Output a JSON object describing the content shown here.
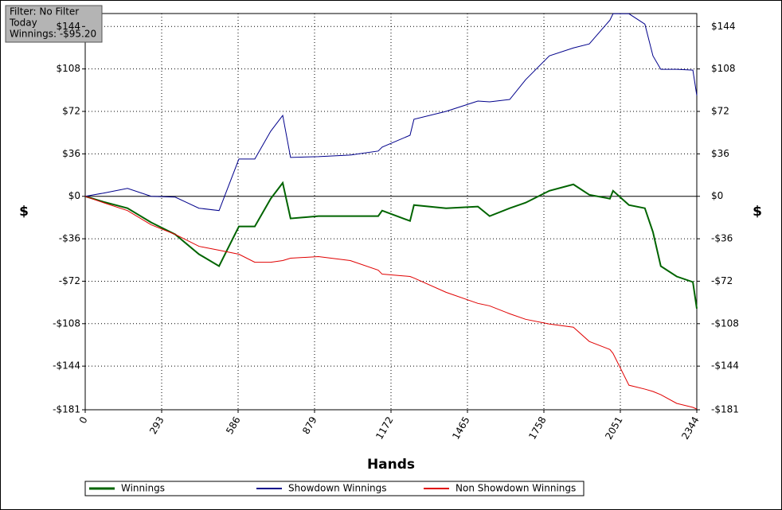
{
  "chart_data": {
    "type": "line",
    "annotations": [
      "Filter: No Filter",
      "Today",
      "Winnings: -$95.20"
    ],
    "x_label": "Hands",
    "y_label": "$",
    "y2_label": "$",
    "x": [
      0,
      70,
      162,
      253,
      345,
      436,
      513,
      589,
      650,
      711,
      757,
      787,
      894,
      1016,
      1123,
      1138,
      1245,
      1260,
      1383,
      1505,
      1550,
      1627,
      1688,
      1779,
      1871,
      1932,
      2011,
      2023,
      2084,
      2145,
      2176,
      2206,
      2267,
      2329,
      2344
    ],
    "series": [
      {
        "name": "Winnings",
        "color": "#006400",
        "width": 2,
        "values": [
          0,
          -4.7,
          -10.1,
          -22.2,
          -32.3,
          -49.1,
          -59.2,
          -25.6,
          -25.6,
          -2.0,
          11.4,
          -18.8,
          -16.8,
          -16.8,
          -16.8,
          -12.1,
          -20.9,
          -7.4,
          -10.1,
          -8.7,
          -16.8,
          -10.1,
          -5.4,
          4.7,
          10.1,
          1.3,
          -2.0,
          4.7,
          -7.4,
          -10.1,
          -30.3,
          -59.2,
          -68.0,
          -72.7,
          -95.2
        ]
      },
      {
        "name": "Showdown Winnings",
        "color": "#00008b",
        "width": 1,
        "values": [
          0,
          2.7,
          6.7,
          0,
          -0.7,
          -10.1,
          -12.1,
          31.6,
          31.6,
          55.2,
          68.6,
          33.0,
          33.6,
          35.0,
          38.4,
          41.7,
          51.8,
          65.3,
          72.0,
          80.8,
          80.1,
          82.1,
          98.9,
          119.1,
          125.8,
          129.2,
          149.4,
          154.8,
          154.8,
          146.0,
          119.1,
          107.7,
          107.7,
          107.0,
          85.5
        ]
      },
      {
        "name": "Non Showdown Winnings",
        "color": "#e00000",
        "width": 1,
        "values": [
          0,
          -5.4,
          -12.1,
          -24.2,
          -32.3,
          -42.4,
          -45.7,
          -49.1,
          -55.9,
          -55.9,
          -54.5,
          -52.5,
          -51.1,
          -54.5,
          -62.6,
          -66.0,
          -68.0,
          -69.3,
          -81.4,
          -90.8,
          -92.9,
          -99.6,
          -104.3,
          -108.3,
          -111.0,
          -123.1,
          -129.9,
          -133.2,
          -160.2,
          -163.5,
          -165.5,
          -168.2,
          -175.6,
          -179.0,
          -180.4
        ]
      }
    ],
    "xlim": [
      0,
      2344
    ],
    "xticks": [
      0,
      293,
      586,
      879,
      1172,
      1465,
      1758,
      2051,
      2344
    ],
    "ylim": [
      -181,
      155
    ],
    "yticks": [
      {
        "value": -181,
        "label": "-$181"
      },
      {
        "value": -144,
        "label": "-$144"
      },
      {
        "value": -108,
        "label": "-$108"
      },
      {
        "value": -72,
        "label": "-$72"
      },
      {
        "value": -36,
        "label": "-$36"
      },
      {
        "value": 0,
        "label": "$0"
      },
      {
        "value": 36,
        "label": "$36"
      },
      {
        "value": 72,
        "label": "$72"
      },
      {
        "value": 108,
        "label": "$108"
      },
      {
        "value": 144,
        "label": "$144"
      }
    ],
    "grid": true
  }
}
